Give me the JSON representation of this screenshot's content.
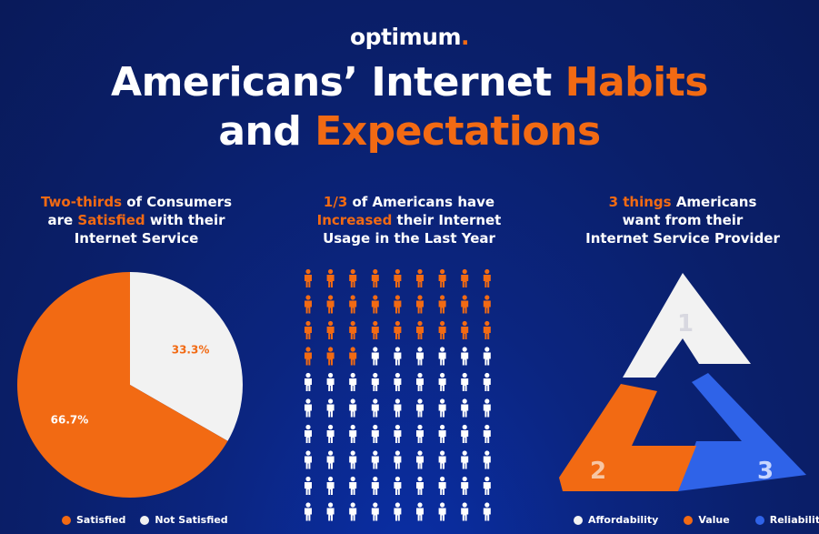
{
  "logo": {
    "text": "optimum",
    "dot": "."
  },
  "title": {
    "line1_white": "Americans’ Internet ",
    "line1_orange": "Habits",
    "line2_white": "and ",
    "line2_orange": "Expectations"
  },
  "colors": {
    "orange": "#f26a13",
    "white": "#f2f2f2",
    "blue": "#2f63e8",
    "navy": "#0b2580"
  },
  "sections": {
    "satisfaction": {
      "h_orange1": "Two-thirds",
      "h_white1": " of Consumers",
      "h_white2": "are ",
      "h_orange2": "Satisfied",
      "h_white3": " with their",
      "h_white4": "Internet Service"
    },
    "usage": {
      "h_orange1": "1/3",
      "h_white1": " of Americans have",
      "h_orange2": "Increased",
      "h_white2": " their Internet",
      "h_white3": "Usage in the Last Year"
    },
    "wants": {
      "h_orange1": "3 things",
      "h_white1": " Americans",
      "h_white2": "want from their",
      "h_white3": "Internet Service Provider"
    }
  },
  "chart_data": [
    {
      "type": "pie",
      "categories": [
        "Satisfied",
        "Not Satisfied"
      ],
      "values": [
        66.7,
        33.3
      ],
      "labels": [
        "66.7%",
        "33.3%"
      ],
      "colors": [
        "#f26a13",
        "#f2f2f2"
      ],
      "legend": "bottom"
    },
    {
      "type": "pictogram",
      "rows": 10,
      "cols": 9,
      "highlighted": 30,
      "highlight_color": "#f26a13",
      "base_color": "#ffffff"
    },
    {
      "type": "triangle-cycle",
      "items": [
        {
          "number": "1",
          "name": "Affordability",
          "color": "#f2f2f2"
        },
        {
          "number": "2",
          "name": "Value",
          "color": "#f26a13"
        },
        {
          "number": "3",
          "name": "Reliability",
          "color": "#2f63e8"
        }
      ],
      "legend": "bottom"
    }
  ]
}
